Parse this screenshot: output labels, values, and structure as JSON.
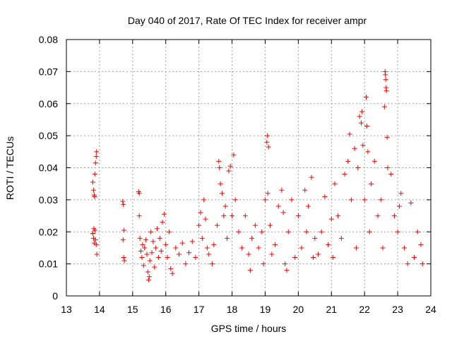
{
  "chart_data": {
    "type": "scatter",
    "title": "Day 040 of 2017, Rate Of TEC Index for receiver ampr",
    "xlabel": "GPS time / hours",
    "ylabel": "ROTI / TECUs",
    "xlim": [
      13,
      24
    ],
    "ylim": [
      0,
      0.08
    ],
    "x_ticks": [
      "13",
      "14",
      "15",
      "16",
      "17",
      "18",
      "19",
      "20",
      "21",
      "22",
      "23",
      "24"
    ],
    "y_ticks": [
      "0",
      "0.01",
      "0.02",
      "0.03",
      "0.04",
      "0.05",
      "0.06",
      "0.07",
      "0.08"
    ],
    "grid": true,
    "marker": "+",
    "color": "#ff0000",
    "series": [
      {
        "name": "ROTI",
        "points": [
          [
            13.8,
            0.0355
          ],
          [
            13.82,
            0.033
          ],
          [
            13.84,
            0.0315
          ],
          [
            13.86,
            0.038
          ],
          [
            13.88,
            0.0415
          ],
          [
            13.9,
            0.0435
          ],
          [
            13.91,
            0.045
          ],
          [
            13.85,
            0.031
          ],
          [
            13.8,
            0.0195
          ],
          [
            13.82,
            0.018
          ],
          [
            13.84,
            0.0165
          ],
          [
            13.86,
            0.0205
          ],
          [
            13.88,
            0.0175
          ],
          [
            13.9,
            0.016
          ],
          [
            13.92,
            0.013
          ],
          [
            13.83,
            0.021
          ],
          [
            14.7,
            0.0295
          ],
          [
            14.72,
            0.0285
          ],
          [
            14.74,
            0.0205
          ],
          [
            14.71,
            0.0175
          ],
          [
            14.73,
            0.012
          ],
          [
            14.75,
            0.011
          ],
          [
            15.18,
            0.0325
          ],
          [
            15.2,
            0.032
          ],
          [
            15.2,
            0.025
          ],
          [
            15.22,
            0.018
          ],
          [
            15.25,
            0.014
          ],
          [
            15.28,
            0.012
          ],
          [
            15.3,
            0.016
          ],
          [
            15.33,
            0.0095
          ],
          [
            15.36,
            0.015
          ],
          [
            15.4,
            0.0175
          ],
          [
            15.43,
            0.013
          ],
          [
            15.46,
            0.0075
          ],
          [
            15.48,
            0.005
          ],
          [
            15.5,
            0.006
          ],
          [
            15.52,
            0.011
          ],
          [
            15.55,
            0.02
          ],
          [
            15.58,
            0.0135
          ],
          [
            15.62,
            0.017
          ],
          [
            15.66,
            0.009
          ],
          [
            15.7,
            0.015
          ],
          [
            15.74,
            0.021
          ],
          [
            15.78,
            0.012
          ],
          [
            15.82,
            0.018
          ],
          [
            15.86,
            0.014
          ],
          [
            15.9,
            0.023
          ],
          [
            15.95,
            0.0255
          ],
          [
            16.0,
            0.016
          ],
          [
            16.05,
            0.012
          ],
          [
            16.1,
            0.02
          ],
          [
            16.15,
            0.0085
          ],
          [
            16.2,
            0.007
          ],
          [
            16.3,
            0.015
          ],
          [
            16.4,
            0.013
          ],
          [
            16.5,
            0.0165
          ],
          [
            16.6,
            0.01
          ],
          [
            16.7,
            0.0135
          ],
          [
            16.8,
            0.017
          ],
          [
            16.9,
            0.012
          ],
          [
            17.0,
            0.022
          ],
          [
            17.05,
            0.026
          ],
          [
            17.1,
            0.018
          ],
          [
            17.15,
            0.03
          ],
          [
            17.2,
            0.024
          ],
          [
            17.25,
            0.015
          ],
          [
            17.3,
            0.013
          ],
          [
            17.4,
            0.01
          ],
          [
            17.45,
            0.016
          ],
          [
            17.55,
            0.022
          ],
          [
            17.6,
            0.042
          ],
          [
            17.62,
            0.04
          ],
          [
            17.65,
            0.035
          ],
          [
            17.7,
            0.032
          ],
          [
            17.75,
            0.025
          ],
          [
            17.8,
            0.028
          ],
          [
            17.85,
            0.018
          ],
          [
            17.9,
            0.039
          ],
          [
            17.95,
            0.0405
          ],
          [
            18.0,
            0.025
          ],
          [
            18.05,
            0.044
          ],
          [
            18.1,
            0.03
          ],
          [
            18.2,
            0.02
          ],
          [
            18.3,
            0.015
          ],
          [
            18.4,
            0.025
          ],
          [
            18.5,
            0.013
          ],
          [
            18.55,
            0.008
          ],
          [
            18.6,
            0.018
          ],
          [
            18.7,
            0.022
          ],
          [
            18.8,
            0.015
          ],
          [
            18.9,
            0.02
          ],
          [
            18.95,
            0.01
          ],
          [
            19.0,
            0.03
          ],
          [
            19.05,
            0.048
          ],
          [
            19.07,
            0.05
          ],
          [
            19.1,
            0.0465
          ],
          [
            19.08,
            0.032
          ],
          [
            19.15,
            0.022
          ],
          [
            19.2,
            0.013
          ],
          [
            19.3,
            0.016
          ],
          [
            19.4,
            0.028
          ],
          [
            19.5,
            0.033
          ],
          [
            19.55,
            0.026
          ],
          [
            19.6,
            0.01
          ],
          [
            19.65,
            0.008
          ],
          [
            19.7,
            0.02
          ],
          [
            19.8,
            0.03
          ],
          [
            19.9,
            0.012
          ],
          [
            20.0,
            0.025
          ],
          [
            20.1,
            0.015
          ],
          [
            20.2,
            0.033
          ],
          [
            20.25,
            0.02
          ],
          [
            20.3,
            0.028
          ],
          [
            20.4,
            0.037
          ],
          [
            20.45,
            0.012
          ],
          [
            20.5,
            0.018
          ],
          [
            20.6,
            0.013
          ],
          [
            20.7,
            0.02
          ],
          [
            20.8,
            0.031
          ],
          [
            20.9,
            0.016
          ],
          [
            21.0,
            0.024
          ],
          [
            21.05,
            0.012
          ],
          [
            21.1,
            0.035
          ],
          [
            21.2,
            0.025
          ],
          [
            21.3,
            0.018
          ],
          [
            21.4,
            0.038
          ],
          [
            21.5,
            0.042
          ],
          [
            21.55,
            0.0505
          ],
          [
            21.6,
            0.03
          ],
          [
            21.7,
            0.046
          ],
          [
            21.75,
            0.015
          ],
          [
            21.8,
            0.04
          ],
          [
            21.85,
            0.056
          ],
          [
            21.9,
            0.054
          ],
          [
            21.92,
            0.0575
          ],
          [
            21.95,
            0.047
          ],
          [
            22.0,
            0.03
          ],
          [
            22.05,
            0.062
          ],
          [
            22.07,
            0.053
          ],
          [
            22.1,
            0.045
          ],
          [
            22.15,
            0.02
          ],
          [
            22.2,
            0.035
          ],
          [
            22.3,
            0.042
          ],
          [
            22.4,
            0.025
          ],
          [
            22.5,
            0.03
          ],
          [
            22.55,
            0.015
          ],
          [
            22.6,
            0.059
          ],
          [
            22.62,
            0.07
          ],
          [
            22.63,
            0.069
          ],
          [
            22.65,
            0.065
          ],
          [
            22.66,
            0.064
          ],
          [
            22.64,
            0.0675
          ],
          [
            22.68,
            0.0495
          ],
          [
            22.7,
            0.04
          ],
          [
            22.8,
            0.038
          ],
          [
            22.9,
            0.025
          ],
          [
            23.0,
            0.02
          ],
          [
            23.05,
            0.028
          ],
          [
            23.1,
            0.032
          ],
          [
            23.2,
            0.015
          ],
          [
            23.3,
            0.01
          ],
          [
            23.4,
            0.029
          ],
          [
            23.5,
            0.012
          ],
          [
            23.6,
            0.02
          ],
          [
            23.7,
            0.016
          ],
          [
            23.75,
            0.01
          ]
        ]
      }
    ]
  }
}
